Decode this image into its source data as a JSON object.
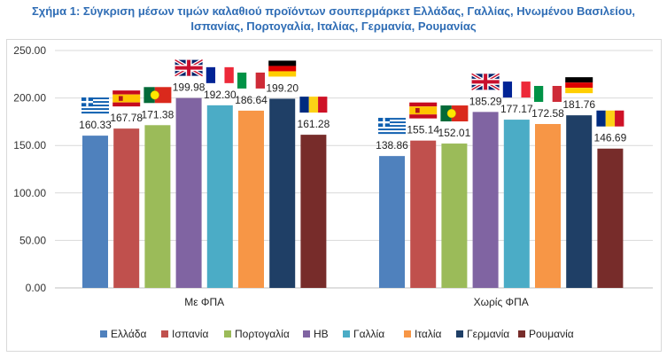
{
  "title_line1": "Σχήμα 1: Σύγκριση μέσων τιμών καλαθιού προϊόντων σουπερμάρκετ Ελλάδας, Γαλλίας, Ηνωμένου Βασιλείου,",
  "title_line2": "Ισπανίας, Πορτογαλία, Ιταλίας, Γερμανία, Ρουμανίας",
  "chart_data": {
    "type": "bar",
    "categories": [
      "Με ΦΠΑ",
      "Χωρίς ΦΠΑ"
    ],
    "series": [
      {
        "name": "Ελλάδα",
        "color": "#4F81BD",
        "flag": "greece-flag-icon",
        "values": [
          160.33,
          138.86
        ]
      },
      {
        "name": "Ισπανία",
        "color": "#C0504D",
        "flag": "spain-flag-icon",
        "values": [
          167.78,
          155.14
        ]
      },
      {
        "name": "Πορτογαλία",
        "color": "#9BBB59",
        "flag": "portugal-flag-icon",
        "values": [
          171.38,
          152.01
        ]
      },
      {
        "name": "ΗΒ",
        "color": "#8064A2",
        "flag": "uk-flag-icon",
        "values": [
          199.98,
          185.29
        ]
      },
      {
        "name": "Γαλλία",
        "color": "#4BACC6",
        "flag": "france-flag-icon",
        "values": [
          192.3,
          177.17
        ]
      },
      {
        "name": "Ιταλία",
        "color": "#F79646",
        "flag": "italy-flag-icon",
        "values": [
          186.64,
          172.58
        ]
      },
      {
        "name": "Γερμανία",
        "color": "#1F3F66",
        "flag": "germany-flag-icon",
        "values": [
          199.2,
          181.76
        ]
      },
      {
        "name": "Ρουμανία",
        "color": "#772C2A",
        "flag": "romania-flag-icon",
        "values": [
          161.28,
          146.69
        ]
      }
    ],
    "data_labels": [
      [
        "160.33",
        "167.78",
        "171.38",
        "199.98",
        "192.30",
        "186.64",
        "199.20",
        "161.28"
      ],
      [
        "138.86",
        "155.14",
        "152.01",
        "185.29",
        "177.17",
        "172.58",
        "181.76",
        "146.69"
      ]
    ],
    "yticks": [
      "0.00",
      "50.00",
      "100.00",
      "150.00",
      "200.00",
      "250.00"
    ],
    "ylim": [
      0,
      250
    ],
    "grid": true,
    "legend": "bottom"
  }
}
